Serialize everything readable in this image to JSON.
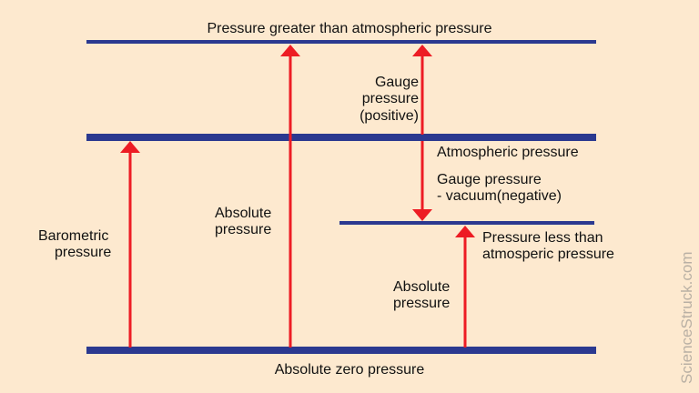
{
  "colors": {
    "background": "#fde9cf",
    "level_line": "#2b3990",
    "arrow": "#ed1c24",
    "watermark": "#b9b0a4"
  },
  "levels": {
    "top": "Pressure greater than atmospheric pressure",
    "atmospheric": "Atmospheric pressure",
    "low_line1": "Pressure less than",
    "low_line2": "atmosperic pressure",
    "zero": "Absolute zero pressure"
  },
  "arrows": {
    "barometric": [
      "Barometric",
      "pressure"
    ],
    "absolute_high": [
      "Absolute",
      "pressure"
    ],
    "gauge_positive": [
      "Gauge",
      "pressure",
      "(positive)"
    ],
    "gauge_negative": [
      "Gauge pressure",
      "- vacuum(negative)"
    ],
    "absolute_low": [
      "Absolute",
      "pressure"
    ]
  },
  "watermark": "ScienceStruck.com"
}
